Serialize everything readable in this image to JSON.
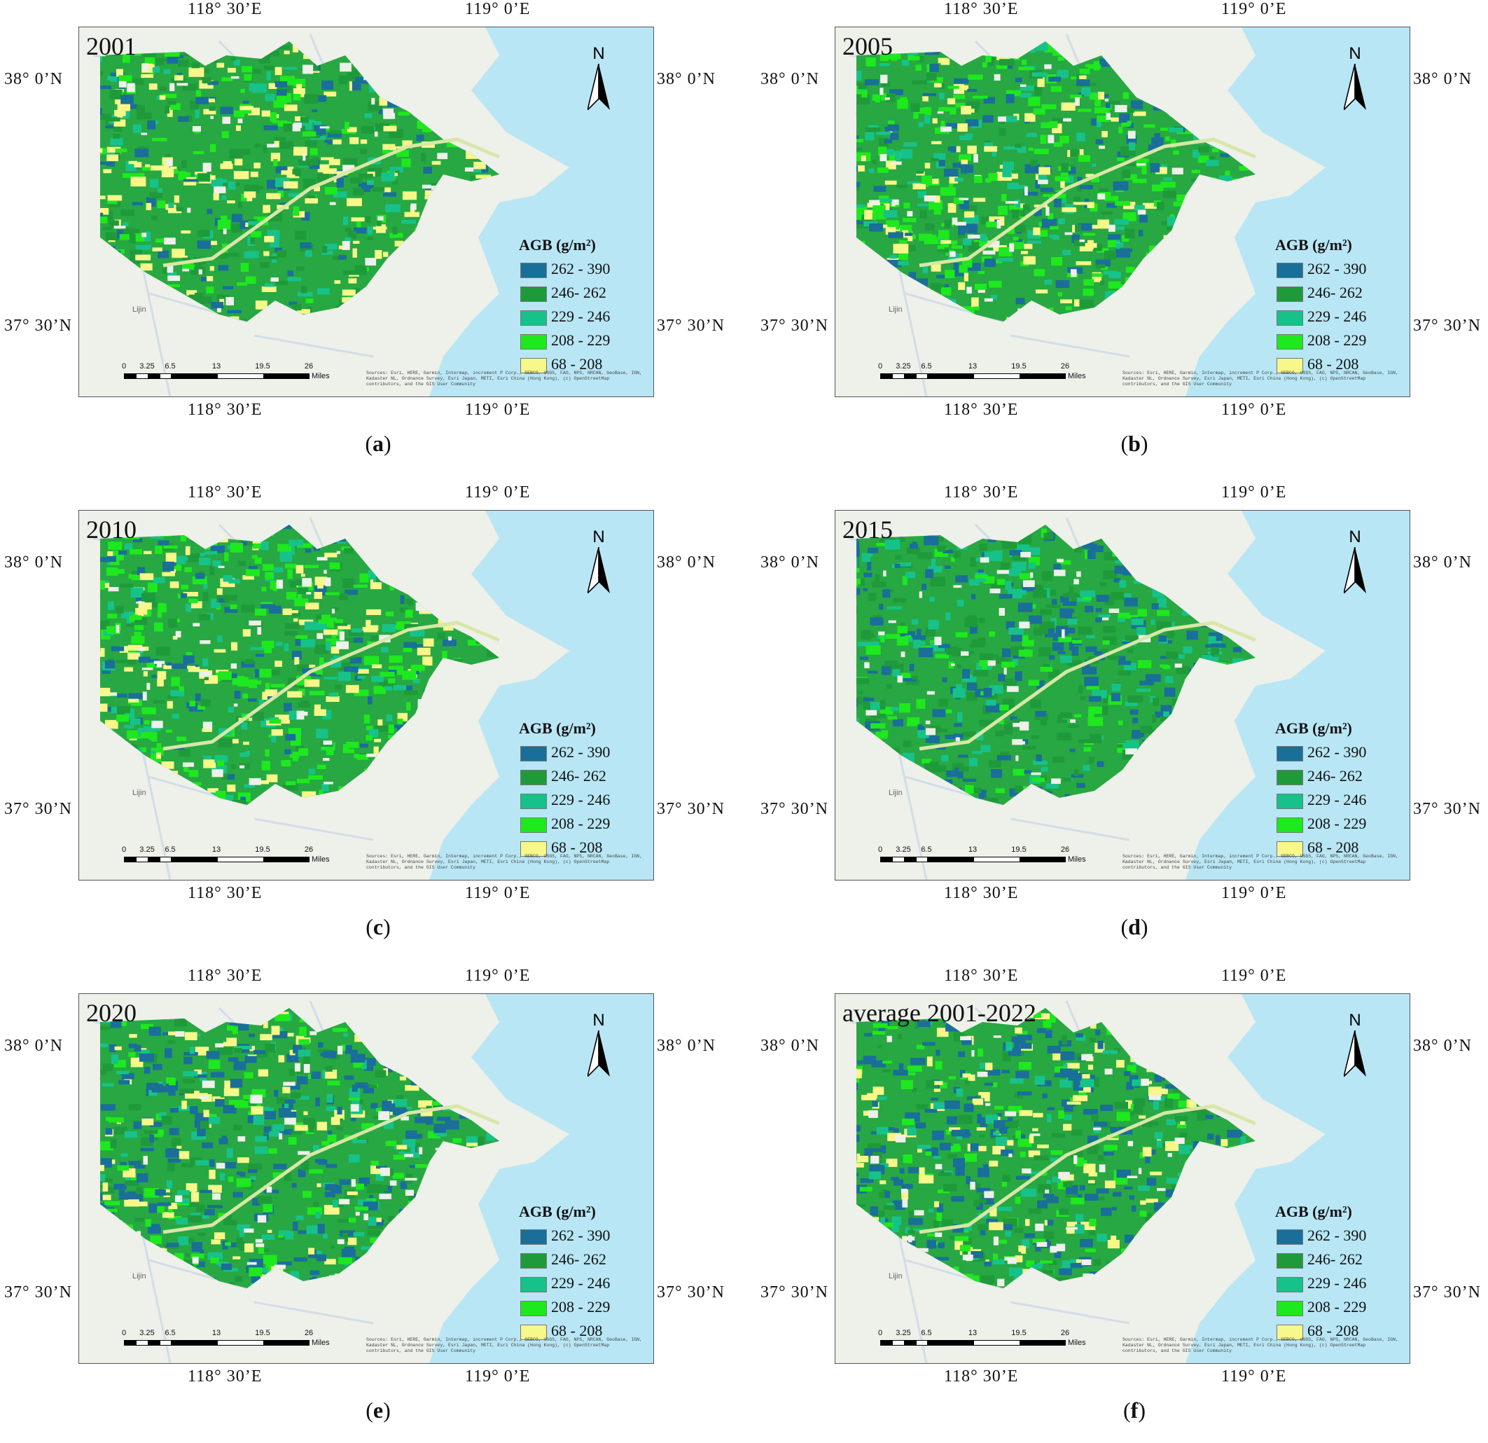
{
  "axes": {
    "top_left_lon": "118° 30’E",
    "top_right_lon": "119° 0’E",
    "bottom_left_lon": "118° 30’E",
    "bottom_right_lon": "119° 0’E",
    "lat_upper_left": "38° 0’N",
    "lat_upper_right": "38° 0’N",
    "lat_lower_left": "37° 30’N",
    "lat_lower_right": "37° 30’N"
  },
  "legend": {
    "title": "AGB (g/m²)",
    "classes": [
      {
        "label": "262 - 390",
        "color": "#1a6e9a"
      },
      {
        "label": "246- 262",
        "color": "#1f9a3a"
      },
      {
        "label": "229 - 246",
        "color": "#17c28a"
      },
      {
        "label": "208 - 229",
        "color": "#1ee81e"
      },
      {
        "label": "68 - 208",
        "color": "#f7f78a"
      }
    ]
  },
  "map": {
    "north_label": "N",
    "scale_ticks": [
      "0",
      "3.25",
      "6.5",
      "13",
      "19.5",
      "26"
    ],
    "scale_unit": "Miles",
    "place_lijin": "Lijin",
    "credits": "Sources: Esri, HERE, Garmin, Intermap, increment P Corp., GEBCO, USGS, FAO, NPS, NRCAN, GeoBase, IGN, Kadaster NL, Ordnance Survey, Esri Japan, METI, Esri China (Hong Kong), (c) OpenStreetMap contributors, and the GIS User Community"
  },
  "panels": [
    {
      "year": "2001",
      "label": "a",
      "dominant": "mixed-yellow"
    },
    {
      "year": "2005",
      "label": "b",
      "dominant": "bright-green"
    },
    {
      "year": "2010",
      "label": "c",
      "dominant": "bright-green"
    },
    {
      "year": "2015",
      "label": "d",
      "dominant": "green-blue"
    },
    {
      "year": "2020",
      "label": "e",
      "dominant": "blue-green"
    },
    {
      "year": "average 2001-2022",
      "label": "f",
      "dominant": "blue-green"
    }
  ]
}
